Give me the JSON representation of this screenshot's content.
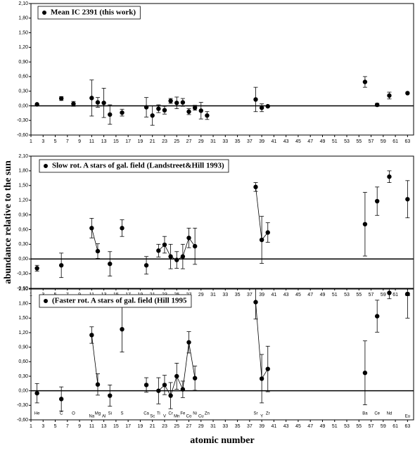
{
  "chart_data": [
    {
      "type": "errorbar-scatter",
      "color": "#000000",
      "connect_adjacent": false,
      "hline": 0,
      "xlim": [
        1,
        64
      ],
      "xticks": [
        1,
        3,
        5,
        7,
        9,
        11,
        13,
        15,
        17,
        19,
        21,
        23,
        25,
        27,
        29,
        31,
        33,
        35,
        37,
        39,
        41,
        43,
        45,
        47,
        49,
        51,
        53,
        55,
        57,
        59,
        61,
        63
      ],
      "ylim": [
        -0.6,
        2.1
      ],
      "yticks": [
        {
          "value": -0.6,
          "label": "-0,60"
        },
        {
          "value": -0.3,
          "label": "-0,30"
        },
        {
          "value": 0,
          "label": "0,00"
        },
        {
          "value": 0.3,
          "label": "0,30"
        },
        {
          "value": 0.6,
          "label": "0,60"
        },
        {
          "value": 0.9,
          "label": "0,90"
        },
        {
          "value": 1.2,
          "label": "1,20"
        },
        {
          "value": 1.5,
          "label": "1,50"
        },
        {
          "value": 1.8,
          "label": "1,80"
        },
        {
          "value": 2.1,
          "label": "2,10"
        }
      ],
      "series": [
        {
          "name": "Mean IC 2391 (this work)",
          "x": [
            2,
            6,
            8,
            11,
            12,
            13,
            14,
            16,
            20,
            21,
            22,
            23,
            24,
            25,
            26,
            27,
            28,
            29,
            30,
            38,
            39,
            40,
            56,
            58,
            60,
            63
          ],
          "values": [
            0.03,
            0.15,
            0.04,
            0.16,
            0.07,
            0.06,
            -0.18,
            -0.14,
            -0.03,
            -0.2,
            -0.06,
            -0.09,
            0.1,
            0.06,
            0.07,
            -0.12,
            -0.04,
            -0.1,
            -0.2,
            0.13,
            -0.04,
            -0.01,
            0.49,
            0.02,
            0.21,
            0.26
          ],
          "errors": [
            0,
            0.04,
            0.05,
            0.37,
            0.1,
            0.3,
            0.2,
            0.07,
            0.2,
            0.2,
            0.08,
            0.08,
            0.05,
            0.12,
            0.08,
            0.06,
            0.05,
            0.17,
            0.08,
            0.25,
            0.08,
            0,
            0.11,
            0.03,
            0.07,
            0
          ]
        }
      ]
    },
    {
      "type": "errorbar-scatter",
      "color": "#000000",
      "connect_adjacent": true,
      "hline": 0,
      "ylabel": "abundance  relative to the  sun",
      "xlim": [
        1,
        64
      ],
      "xticks": [
        1,
        3,
        5,
        7,
        9,
        11,
        13,
        15,
        17,
        19,
        21,
        23,
        25,
        27,
        29,
        31,
        33,
        35,
        37,
        39,
        41,
        43,
        45,
        47,
        49,
        51,
        53,
        55,
        57,
        59,
        61,
        63
      ],
      "ylim": [
        -0.6,
        2.1
      ],
      "yticks": [
        {
          "value": -0.6,
          "label": "-0,60"
        },
        {
          "value": -0.3,
          "label": "-0,30"
        },
        {
          "value": 0,
          "label": "0,00"
        },
        {
          "value": 0.3,
          "label": "0,30"
        },
        {
          "value": 0.6,
          "label": "0,60"
        },
        {
          "value": 0.9,
          "label": "0,90"
        },
        {
          "value": 1.2,
          "label": "1,20"
        },
        {
          "value": 1.5,
          "label": "1,50"
        },
        {
          "value": 1.8,
          "label": "1,80"
        },
        {
          "value": 2.1,
          "label": "2,10"
        }
      ],
      "series": [
        {
          "name": "Slow rot. A stars of gal. field (Landstreet&Hill 1993)",
          "x": [
            2,
            6,
            11,
            12,
            14,
            16,
            20,
            22,
            23,
            24,
            25,
            26,
            27,
            28,
            38,
            39,
            40,
            56,
            58,
            60,
            63
          ],
          "values": [
            -0.19,
            -0.13,
            0.63,
            0.16,
            -0.1,
            0.63,
            -0.13,
            0.17,
            0.29,
            0.05,
            -0.02,
            0.05,
            0.43,
            0.26,
            1.47,
            0.39,
            0.54,
            0.71,
            1.18,
            1.68,
            1.22
          ],
          "errors": [
            0.06,
            0.25,
            0.2,
            0.15,
            0.25,
            0.17,
            0.18,
            0.13,
            0.17,
            0.25,
            0.17,
            0.25,
            0.2,
            0.37,
            0.09,
            0.48,
            0.2,
            0.65,
            0.29,
            0.12,
            0.38
          ]
        }
      ]
    },
    {
      "type": "errorbar-scatter",
      "color": "#000000",
      "connect_adjacent": true,
      "hline": 0,
      "xlabel": "atomic number",
      "xlim": [
        1,
        64
      ],
      "xticks": [
        1,
        3,
        5,
        7,
        9,
        11,
        13,
        15,
        17,
        19,
        21,
        23,
        25,
        27,
        29,
        31,
        33,
        35,
        37,
        39,
        41,
        43,
        45,
        47,
        49,
        51,
        53,
        55,
        57,
        59,
        61,
        63
      ],
      "ylim": [
        -0.6,
        2.1
      ],
      "yticks": [
        {
          "value": -0.6,
          "label": "-0,60"
        },
        {
          "value": -0.3,
          "label": "-0,30"
        },
        {
          "value": 0,
          "label": "0,00"
        },
        {
          "value": 0.3,
          "label": "0,30"
        },
        {
          "value": 0.6,
          "label": "0,60"
        },
        {
          "value": 0.9,
          "label": "0,90"
        },
        {
          "value": 1.2,
          "label": "1,20"
        },
        {
          "value": 1.5,
          "label": "1,50"
        },
        {
          "value": 1.8,
          "label": "1,80"
        },
        {
          "value": 2.1,
          "label": "2,10"
        }
      ],
      "element_labels": [
        {
          "x": 2,
          "label": "He"
        },
        {
          "x": 6,
          "label": "C"
        },
        {
          "x": 8,
          "label": "O"
        },
        {
          "x": 11,
          "label": "Na"
        },
        {
          "x": 12,
          "label": "Mg"
        },
        {
          "x": 13,
          "label": "Al"
        },
        {
          "x": 14,
          "label": "Si"
        },
        {
          "x": 16,
          "label": "S"
        },
        {
          "x": 20,
          "label": "Ca"
        },
        {
          "x": 21,
          "label": "Sc"
        },
        {
          "x": 22,
          "label": "Ti"
        },
        {
          "x": 23,
          "label": "V"
        },
        {
          "x": 24,
          "label": "Cr"
        },
        {
          "x": 25,
          "label": "Mn"
        },
        {
          "x": 26,
          "label": "Fe"
        },
        {
          "x": 27,
          "label": "Co"
        },
        {
          "x": 28,
          "label": "Ni"
        },
        {
          "x": 29,
          "label": "Cu"
        },
        {
          "x": 30,
          "label": "Zn"
        },
        {
          "x": 38,
          "label": "Sr"
        },
        {
          "x": 39,
          "label": "Y"
        },
        {
          "x": 40,
          "label": "Zr"
        },
        {
          "x": 56,
          "label": "Ba"
        },
        {
          "x": 58,
          "label": "Ce"
        },
        {
          "x": 60,
          "label": "Nd"
        },
        {
          "x": 63,
          "label": "Eu"
        }
      ],
      "series": [
        {
          "name": "(Faster rot. A stars of gal. field (Hill 1995",
          "x": [
            2,
            6,
            11,
            12,
            14,
            16,
            20,
            22,
            23,
            24,
            25,
            26,
            27,
            28,
            38,
            39,
            40,
            56,
            58,
            60,
            63
          ],
          "values": [
            -0.05,
            -0.17,
            1.15,
            0.13,
            -0.1,
            1.27,
            0.12,
            0,
            0.12,
            -0.1,
            0.3,
            0.03,
            1,
            0.26,
            1.83,
            0.25,
            0.45,
            0.37,
            1.54,
            2.02,
            2
          ],
          "errors": [
            0.2,
            0.25,
            0.17,
            0.22,
            0.22,
            0.47,
            0.15,
            0.27,
            0.2,
            0.27,
            0.27,
            0.17,
            0.22,
            0.25,
            0.35,
            0.5,
            0.47,
            0.66,
            0.33,
            0.12,
            0.5
          ]
        }
      ]
    }
  ]
}
